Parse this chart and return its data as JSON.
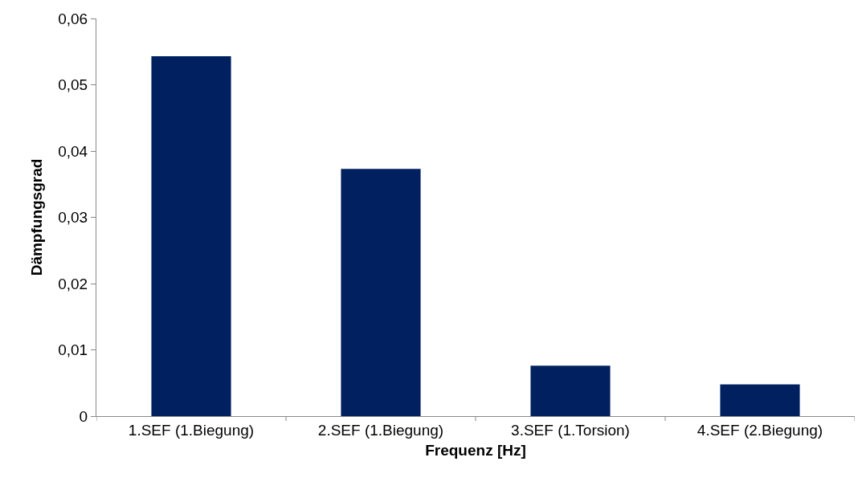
{
  "chart_data": {
    "type": "bar",
    "xlabel": "Frequenz [Hz]",
    "ylabel": "Dämpfungsgrad",
    "categories": [
      "1.SEF (1.Biegung)",
      "2.SEF (1.Biegung)",
      "3.SEF (1.Torsion)",
      "4.SEF (2.Biegung)"
    ],
    "values": [
      0.0543,
      0.0373,
      0.0076,
      0.0048
    ],
    "color": "#002060",
    "ylim": [
      0,
      0.06
    ],
    "yticks": [
      0,
      {
        "value": 0.01,
        "label": "0,01"
      },
      {
        "value": 0.02,
        "label": "0,02"
      },
      {
        "value": 0.03,
        "label": "0,03"
      },
      {
        "value": 0.04,
        "label": "0,04"
      },
      {
        "value": 0.05,
        "label": "0,05"
      },
      {
        "value": 0.06,
        "label": "0,06"
      }
    ],
    "grid": false,
    "legend": false
  }
}
